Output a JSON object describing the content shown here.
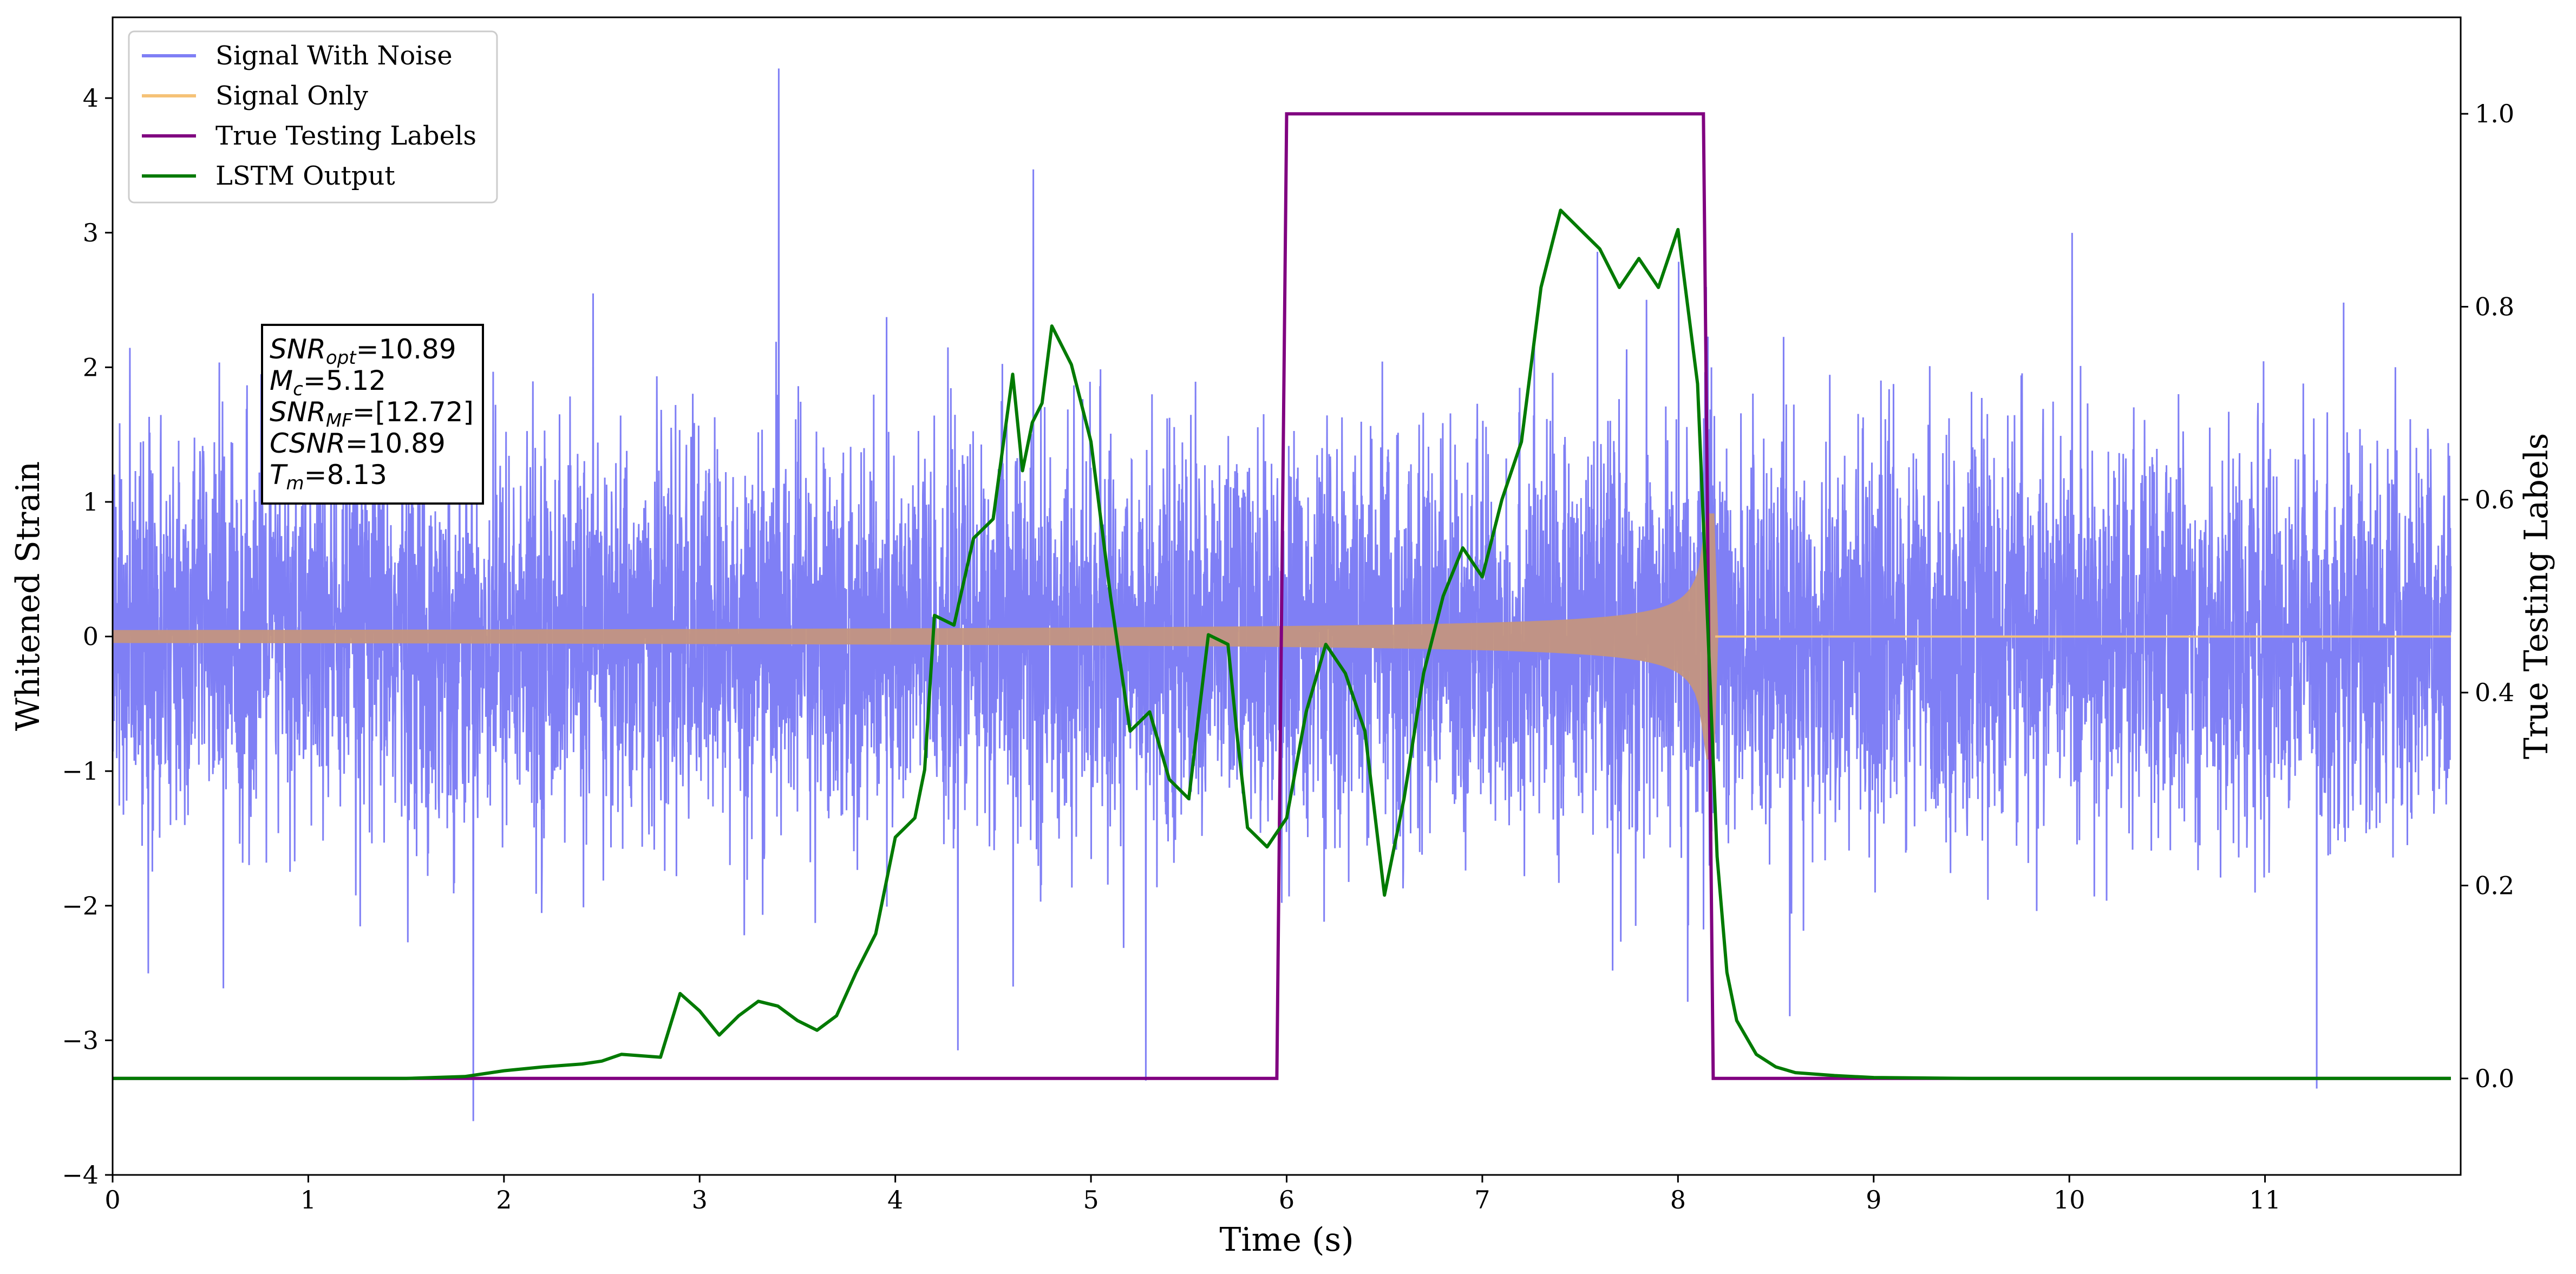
{
  "chart_data": {
    "type": "line",
    "xlabel": "Time (s)",
    "ylabel": "Whitened Strain",
    "y2label": "True Testing Labels",
    "xlim": [
      0,
      12
    ],
    "ylim": [
      -4,
      4.6
    ],
    "y2lim": [
      -0.1,
      1.1
    ],
    "xticks": [
      "0",
      "1",
      "2",
      "3",
      "4",
      "5",
      "6",
      "7",
      "8",
      "9",
      "10",
      "11"
    ],
    "yticks": [
      {
        "value": -4,
        "label": "−4"
      },
      {
        "value": -3,
        "label": "−3"
      },
      {
        "value": -2,
        "label": "−2"
      },
      {
        "value": -1,
        "label": "−1"
      },
      {
        "value": 0,
        "label": "0"
      },
      {
        "value": 1,
        "label": "1"
      },
      {
        "value": 2,
        "label": "2"
      },
      {
        "value": 3,
        "label": "3"
      },
      {
        "value": 4,
        "label": "4"
      }
    ],
    "y2ticks": [
      {
        "value": 0.0,
        "label": "0.0"
      },
      {
        "value": 0.2,
        "label": "0.2"
      },
      {
        "value": 0.4,
        "label": "0.4"
      },
      {
        "value": 0.6,
        "label": "0.6"
      },
      {
        "value": 0.8,
        "label": "0.8"
      },
      {
        "value": 1.0,
        "label": "1.0"
      }
    ],
    "grid": false,
    "legend_position": "top-left",
    "series": [
      {
        "name": "Signal With Noise",
        "color": "#7f7ff5",
        "axis": "left",
        "description_values": {
          "mean": 0,
          "std": 0.7,
          "min": -3.6,
          "max": 4.22
        }
      },
      {
        "name": "Signal Only",
        "color": "#f5c277",
        "axis": "left",
        "chirp": {
          "start": 0,
          "merger": 8.13,
          "end_amplitude": 0.95,
          "start_amplitude": 0.05,
          "amplitude_at_6s": 0.17,
          "amplitude_at_7s": 0.27
        }
      },
      {
        "name": "True Testing Labels",
        "color": "#800080",
        "axis": "right",
        "x": [
          0,
          5.95,
          6.0,
          8.13,
          8.18,
          11.95
        ],
        "values": [
          0,
          0,
          1,
          1,
          0,
          0
        ]
      },
      {
        "name": "LSTM Output",
        "color": "#007a00",
        "axis": "right",
        "x": [
          0,
          1.0,
          1.5,
          1.8,
          2.0,
          2.2,
          2.4,
          2.5,
          2.6,
          2.8,
          2.9,
          3.0,
          3.1,
          3.2,
          3.3,
          3.4,
          3.5,
          3.6,
          3.7,
          3.8,
          3.9,
          4.0,
          4.1,
          4.15,
          4.2,
          4.3,
          4.4,
          4.5,
          4.6,
          4.65,
          4.7,
          4.75,
          4.8,
          4.85,
          4.9,
          5.0,
          5.1,
          5.2,
          5.3,
          5.4,
          5.5,
          5.6,
          5.7,
          5.75,
          5.8,
          5.9,
          6.0,
          6.1,
          6.2,
          6.3,
          6.4,
          6.5,
          6.6,
          6.7,
          6.8,
          6.9,
          7.0,
          7.1,
          7.2,
          7.3,
          7.4,
          7.5,
          7.6,
          7.7,
          7.8,
          7.9,
          8.0,
          8.1,
          8.15,
          8.2,
          8.25,
          8.3,
          8.4,
          8.5,
          8.6,
          8.8,
          9.0,
          9.5,
          11.95
        ],
        "values": [
          0,
          0,
          0,
          0.002,
          0.008,
          0.012,
          0.015,
          0.018,
          0.025,
          0.022,
          0.088,
          0.07,
          0.045,
          0.065,
          0.08,
          0.075,
          0.06,
          0.05,
          0.065,
          0.11,
          0.15,
          0.25,
          0.27,
          0.32,
          0.48,
          0.47,
          0.56,
          0.58,
          0.73,
          0.63,
          0.68,
          0.7,
          0.78,
          0.76,
          0.74,
          0.66,
          0.5,
          0.36,
          0.38,
          0.31,
          0.29,
          0.46,
          0.45,
          0.35,
          0.26,
          0.24,
          0.27,
          0.38,
          0.45,
          0.42,
          0.36,
          0.19,
          0.29,
          0.42,
          0.5,
          0.55,
          0.52,
          0.6,
          0.66,
          0.82,
          0.9,
          0.88,
          0.86,
          0.82,
          0.85,
          0.82,
          0.88,
          0.72,
          0.48,
          0.23,
          0.11,
          0.06,
          0.025,
          0.012,
          0.006,
          0.003,
          0.001,
          0,
          0
        ]
      }
    ],
    "annotation": {
      "lines": [
        {
          "main": "SNR",
          "sub": "opt",
          "value": "=10.89"
        },
        {
          "main": "M",
          "sub": "c",
          "value": "=5.12"
        },
        {
          "main": "SNR",
          "sub": "MF",
          "value": "=[12.72]"
        },
        {
          "main": "CSNR",
          "sub": "",
          "value": "=10.89"
        },
        {
          "main": "T",
          "sub": "m",
          "value": "=8.13"
        }
      ]
    }
  }
}
